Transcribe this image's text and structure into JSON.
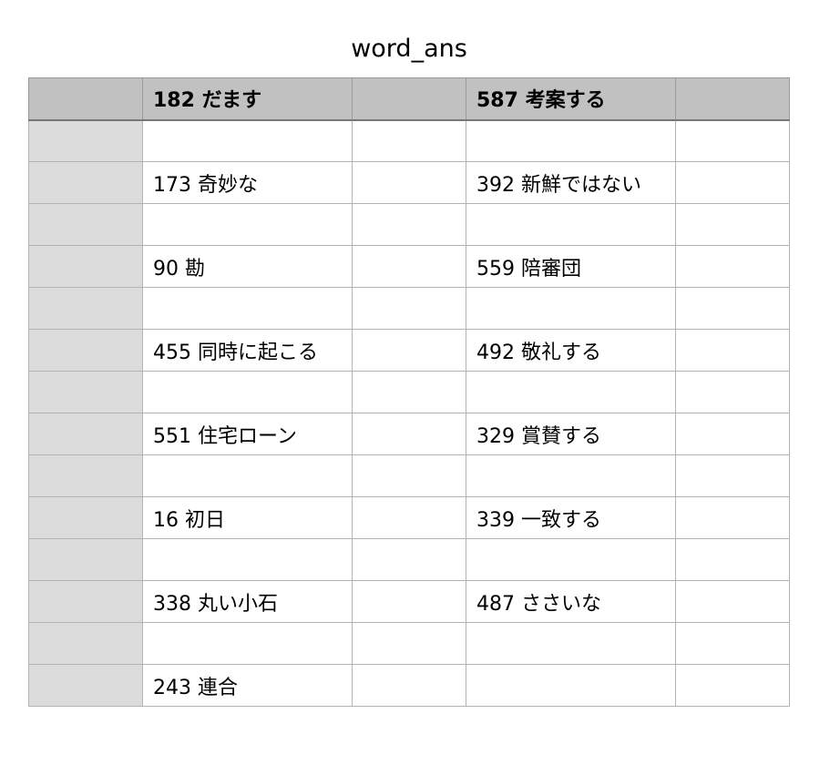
{
  "sheet": {
    "title": "word_ans"
  },
  "table": {
    "header": [
      "",
      "182 だます",
      "",
      "587 考案する",
      ""
    ],
    "rows": [
      [
        "",
        "",
        "",
        "",
        ""
      ],
      [
        "",
        "173 奇妙な",
        "",
        "392 新鮮ではない",
        ""
      ],
      [
        "",
        "",
        "",
        "",
        ""
      ],
      [
        "",
        "90 勘",
        "",
        "559 陪審団",
        ""
      ],
      [
        "",
        "",
        "",
        "",
        ""
      ],
      [
        "",
        "455 同時に起こる",
        "",
        "492 敬礼する",
        ""
      ],
      [
        "",
        "",
        "",
        "",
        ""
      ],
      [
        "",
        "551 住宅ローン",
        "",
        "329 賞賛する",
        ""
      ],
      [
        "",
        "",
        "",
        "",
        ""
      ],
      [
        "",
        "16 初日",
        "",
        "339 一致する",
        ""
      ],
      [
        "",
        "",
        "",
        "",
        ""
      ],
      [
        "",
        "338 丸い小石",
        "",
        "487 ささいな",
        ""
      ],
      [
        "",
        "",
        "",
        "",
        ""
      ],
      [
        "",
        "243 連合",
        "",
        "",
        ""
      ]
    ]
  },
  "colors": {
    "header_bg": "#c0c1c0",
    "row_header_bg": "#dcdcdc",
    "grid_line": "#b3b3b3"
  }
}
